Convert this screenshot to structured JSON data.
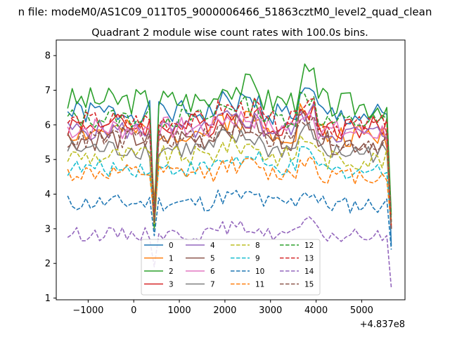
{
  "figure_title": "n file: modeM0/AS1C09_011T05_9000006466_51863cztM0_level2_quad_clean",
  "chart_data": {
    "type": "line",
    "title": "Quadrant 2 module wise count rates with 100.0s bins.",
    "xlabel": "",
    "ylabel": "",
    "x_offset_label": "+4.837e8",
    "xlim": [
      -1700,
      5950
    ],
    "ylim": [
      0.95,
      8.45
    ],
    "x_ticks": [
      -1000,
      0,
      1000,
      2000,
      3000,
      4000,
      5000
    ],
    "x_tick_labels": [
      "−1000",
      "0",
      "1000",
      "2000",
      "3000",
      "4000",
      "5000"
    ],
    "y_ticks": [
      1,
      2,
      3,
      4,
      5,
      6,
      7,
      8
    ],
    "y_tick_labels": [
      "1",
      "2",
      "3",
      "4",
      "5",
      "6",
      "7",
      "8"
    ],
    "legend_position": "lower-center",
    "x_start": -1450,
    "x_step": 100,
    "gap_start": 450,
    "gap_end": 550,
    "series": [
      {
        "name": "0",
        "color": "#1f77b4",
        "dashed": false,
        "mean": 6.35,
        "amp": 0.35,
        "drop_at_gap": 3.2,
        "end": 2.5,
        "bump": 0.5,
        "seed": 1
      },
      {
        "name": "1",
        "color": "#ff7f0e",
        "dashed": false,
        "mean": 5.8,
        "amp": 0.35,
        "drop_at_gap": 3.8,
        "end": 3.1,
        "bump": 0.6,
        "seed": 2
      },
      {
        "name": "2",
        "color": "#2ca02c",
        "dashed": false,
        "mean": 6.7,
        "amp": 0.4,
        "drop_at_gap": 3.4,
        "end": 3.4,
        "bump": 0.7,
        "seed": 3
      },
      {
        "name": "3",
        "color": "#d62728",
        "dashed": false,
        "mean": 6.0,
        "amp": 0.35,
        "drop_at_gap": 3.1,
        "end": 3.0,
        "bump": 0.4,
        "seed": 4
      },
      {
        "name": "4",
        "color": "#9467bd",
        "dashed": false,
        "mean": 5.85,
        "amp": 0.3,
        "drop_at_gap": 3.3,
        "end": 3.2,
        "bump": 0.5,
        "seed": 5
      },
      {
        "name": "5",
        "color": "#8c564b",
        "dashed": false,
        "mean": 5.6,
        "amp": 0.35,
        "drop_at_gap": 3.3,
        "end": 3.0,
        "bump": 0.6,
        "seed": 6
      },
      {
        "name": "6",
        "color": "#e377c2",
        "dashed": false,
        "mean": 5.9,
        "amp": 0.35,
        "drop_at_gap": 3.2,
        "end": 3.2,
        "bump": 0.5,
        "seed": 7
      },
      {
        "name": "7",
        "color": "#7f7f7f",
        "dashed": false,
        "mean": 5.3,
        "amp": 0.3,
        "drop_at_gap": 3.0,
        "end": 3.0,
        "bump": 0.5,
        "seed": 8
      },
      {
        "name": "8",
        "color": "#bcbd22",
        "dashed": true,
        "mean": 5.1,
        "amp": 0.3,
        "drop_at_gap": 3.0,
        "end": 3.2,
        "bump": 0.5,
        "seed": 9
      },
      {
        "name": "9",
        "color": "#17becf",
        "dashed": true,
        "mean": 4.75,
        "amp": 0.25,
        "drop_at_gap": 3.4,
        "end": 3.0,
        "bump": 0.4,
        "seed": 10
      },
      {
        "name": "10",
        "color": "#1f77b4",
        "dashed": true,
        "mean": 3.75,
        "amp": 0.25,
        "drop_at_gap": 2.8,
        "end": 2.4,
        "bump": 0.3,
        "seed": 11
      },
      {
        "name": "11",
        "color": "#ff7f0e",
        "dashed": true,
        "mean": 4.6,
        "amp": 0.25,
        "drop_at_gap": 3.3,
        "end": 3.1,
        "bump": 0.4,
        "seed": 12
      },
      {
        "name": "12",
        "color": "#2ca02c",
        "dashed": true,
        "mean": 6.2,
        "amp": 0.3,
        "drop_at_gap": 3.0,
        "end": 3.2,
        "bump": 0.6,
        "seed": 13
      },
      {
        "name": "13",
        "color": "#d62728",
        "dashed": true,
        "mean": 6.1,
        "amp": 0.3,
        "drop_at_gap": 3.2,
        "end": 3.0,
        "bump": 0.6,
        "seed": 14
      },
      {
        "name": "14",
        "color": "#9467bd",
        "dashed": true,
        "mean": 2.85,
        "amp": 0.2,
        "drop_at_gap": 1.9,
        "end": 1.3,
        "bump": 0.3,
        "seed": 15
      },
      {
        "name": "15",
        "color": "#8c564b",
        "dashed": true,
        "mean": 5.6,
        "amp": 0.3,
        "drop_at_gap": 3.2,
        "end": 3.0,
        "bump": 0.5,
        "seed": 16
      }
    ]
  }
}
